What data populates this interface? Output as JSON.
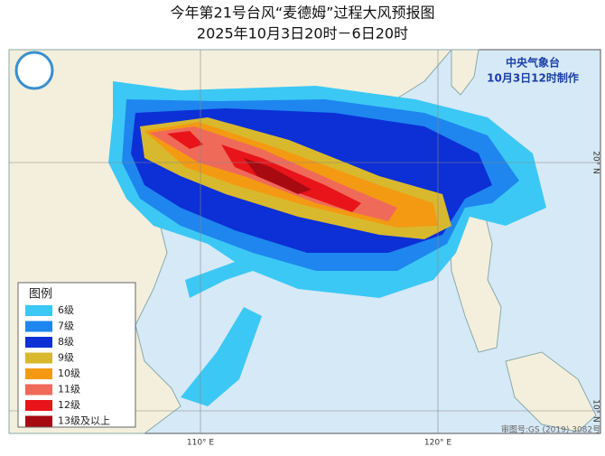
{
  "header": {
    "title": "今年第21号台风“麦德姆”过程大风预报图",
    "subtitle": "2025年10月3日20时－6日20时"
  },
  "agency": {
    "name": "中央气象台",
    "issued": "10月3日12时制作"
  },
  "axes": {
    "lon": [
      "110° E",
      "120° E"
    ],
    "lat": [
      "20° N",
      "10° N"
    ]
  },
  "legend": {
    "title": "图例",
    "items": [
      {
        "label": "6级",
        "color": "#3cc8f4"
      },
      {
        "label": "7级",
        "color": "#1e86ee"
      },
      {
        "label": "8级",
        "color": "#0c2fd6"
      },
      {
        "label": "9级",
        "color": "#d8b92e"
      },
      {
        "label": "10级",
        "color": "#f39a12"
      },
      {
        "label": "11级",
        "color": "#f06a5a"
      },
      {
        "label": "12级",
        "color": "#e8141a"
      },
      {
        "label": "13级及以上",
        "color": "#a80a12"
      }
    ]
  },
  "footer": {
    "approval": "审图号:GS (2019) 3082号"
  }
}
